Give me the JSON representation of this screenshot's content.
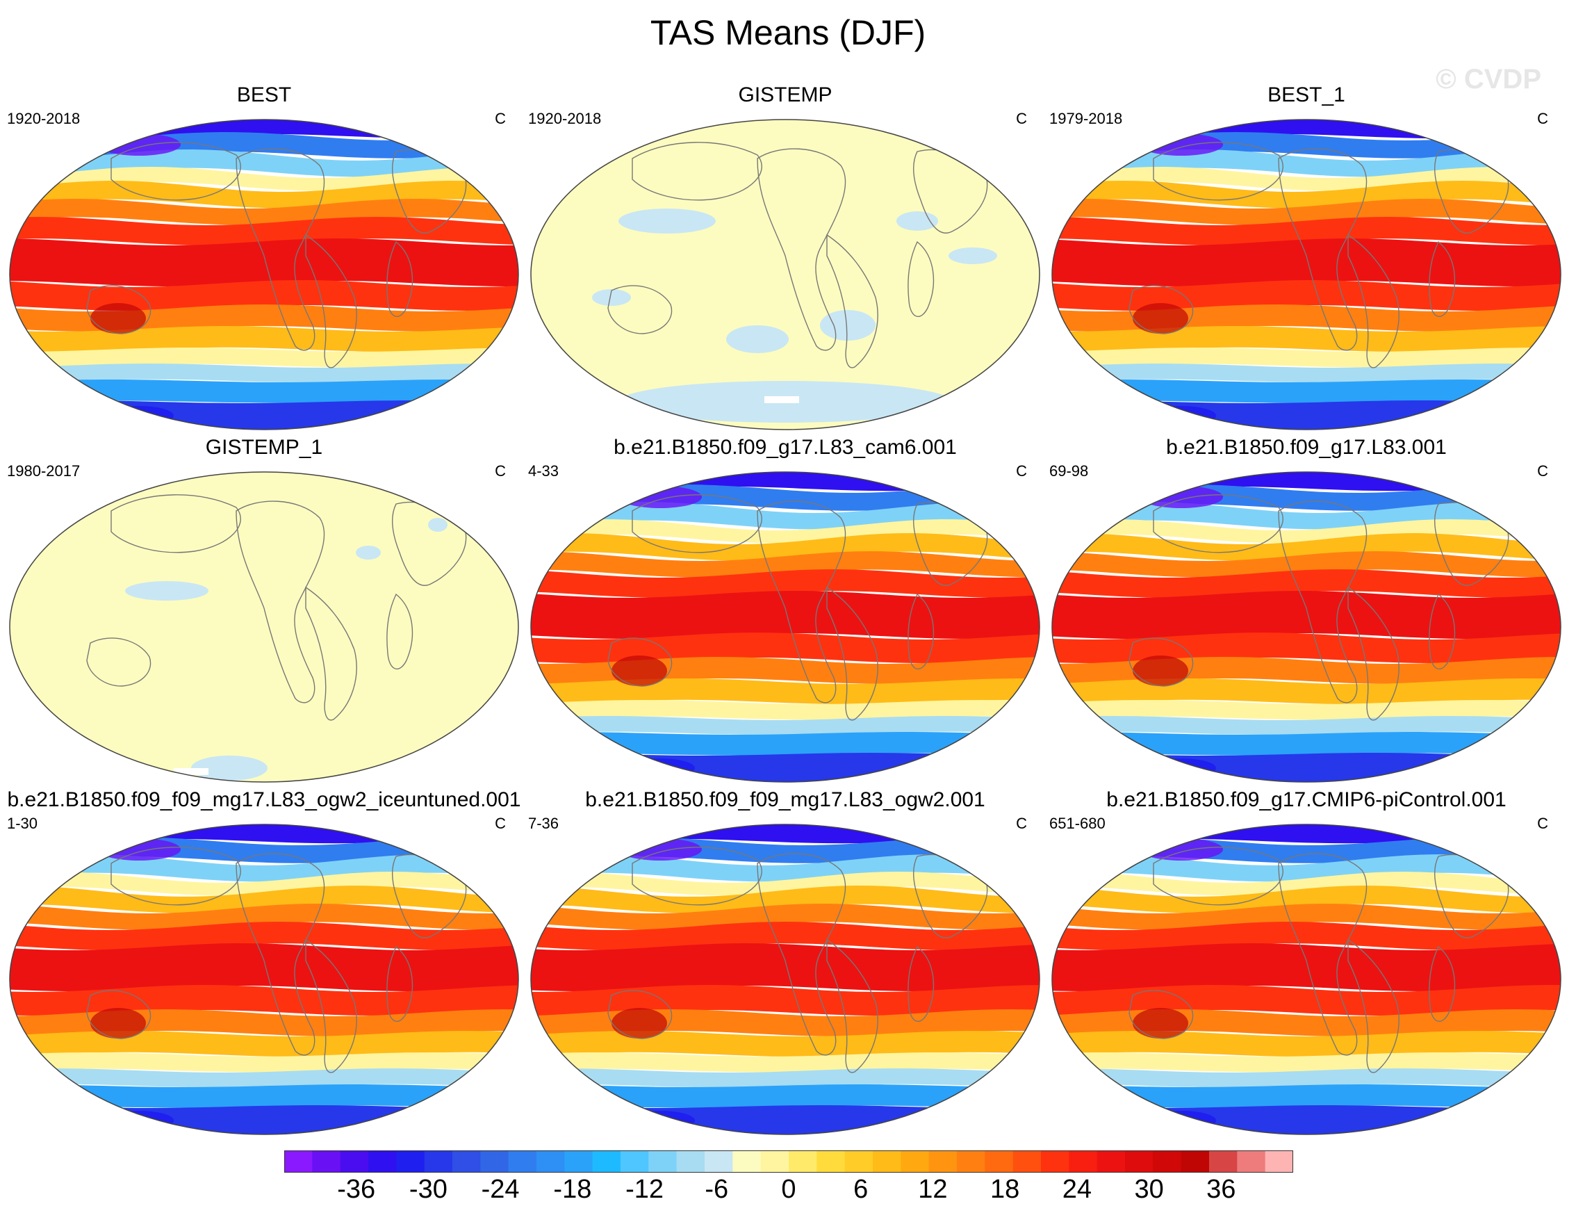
{
  "figure": {
    "title": "TAS Means (DJF)",
    "watermark": "© CVDP"
  },
  "panels": [
    {
      "title": "BEST",
      "years": "1920-2018",
      "units": "C",
      "kind": "absolute"
    },
    {
      "title": "GISTEMP",
      "years": "1920-2018",
      "units": "C",
      "kind": "anomaly"
    },
    {
      "title": "BEST_1",
      "years": "1979-2018",
      "units": "C",
      "kind": "absolute"
    },
    {
      "title": "GISTEMP_1",
      "years": "1980-2017",
      "units": "C",
      "kind": "anomaly"
    },
    {
      "title": "b.e21.B1850.f09_g17.L83_cam6.001",
      "years": "4-33",
      "units": "C",
      "kind": "absolute"
    },
    {
      "title": "b.e21.B1850.f09_g17.L83.001",
      "years": "69-98",
      "units": "C",
      "kind": "absolute"
    },
    {
      "title": "b.e21.B1850.f09_f09_mg17.L83_ogw2_iceuntuned.001",
      "years": "1-30",
      "units": "C",
      "kind": "absolute"
    },
    {
      "title": "b.e21.B1850.f09_f09_mg17.L83_ogw2.001",
      "years": "7-36",
      "units": "C",
      "kind": "absolute"
    },
    {
      "title": "b.e21.B1850.f09_g17.CMIP6-piControl.001",
      "years": "651-680",
      "units": "C",
      "kind": "absolute"
    }
  ],
  "colorbar": {
    "labels": [
      "-36",
      "-30",
      "-24",
      "-18",
      "-12",
      "-6",
      "0",
      "6",
      "12",
      "18",
      "24",
      "30",
      "36"
    ],
    "label_values": [
      -36,
      -30,
      -24,
      -18,
      -12,
      -6,
      0,
      6,
      12,
      18,
      24,
      30,
      36
    ],
    "bin_width": 2,
    "range": [
      -42,
      42
    ],
    "colors": [
      "#8a19ff",
      "#6a10f5",
      "#4a0df0",
      "#2f10f0",
      "#1f1ff0",
      "#2638ea",
      "#2f4fe6",
      "#3166e6",
      "#307df0",
      "#2e8ff5",
      "#2aa2fa",
      "#1ebaff",
      "#4fc6ff",
      "#7fd2f7",
      "#a8dcf2",
      "#c9e6f4",
      "#fcfcc0",
      "#fff5a0",
      "#ffea6a",
      "#ffdc3c",
      "#ffcc28",
      "#ffbb18",
      "#ffa810",
      "#ff9410",
      "#ff8010",
      "#ff6a10",
      "#ff5010",
      "#ff3210",
      "#f81e10",
      "#ec1212",
      "#de0c0c",
      "#d00808",
      "#c00505",
      "#d84545",
      "#ee7c7c",
      "#ffb4b4"
    ]
  }
}
